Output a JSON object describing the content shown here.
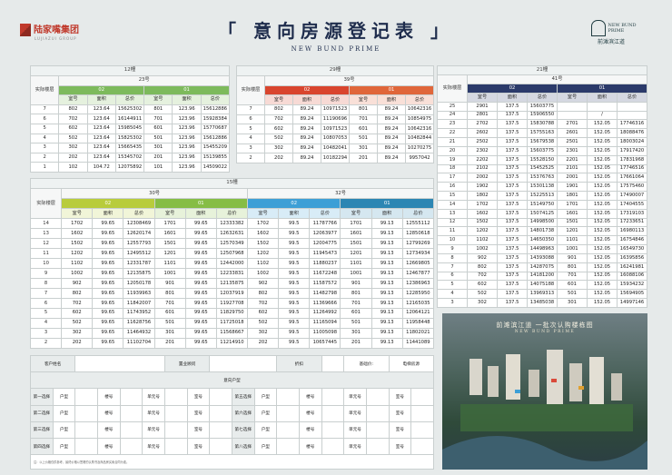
{
  "header": {
    "logo": "陆家嘴集团",
    "logo_sub": "LUJIAZUI GROUP",
    "title": "「 意向房源登记表 」",
    "subtitle": "NEW BUND PRIME",
    "brand_en": "NEW BUND PRIME",
    "brand_cn": "前滩滨江道"
  },
  "tables": [
    {
      "building": "12幢",
      "floor_label": "实际楼层",
      "columns": [
        "室号",
        "面积",
        "总价"
      ],
      "units": [
        {
          "name": "23号",
          "groups": [
            {
              "name": "02",
              "color": "#7dba5c"
            },
            {
              "name": "01",
              "color": "#7dba5c"
            }
          ]
        }
      ],
      "rows": [
        [
          7,
          802,
          123.64,
          15625302,
          801,
          123.96,
          15612886
        ],
        [
          6,
          702,
          123.64,
          16144911,
          701,
          123.96,
          15928384
        ],
        [
          5,
          602,
          123.64,
          15985045,
          601,
          123.96,
          15770687
        ],
        [
          4,
          502,
          123.64,
          15825302,
          501,
          123.96,
          15612886
        ],
        [
          3,
          302,
          123.64,
          15665435,
          301,
          123.96,
          15455209
        ],
        [
          2,
          202,
          123.64,
          15345702,
          201,
          123.96,
          15139855
        ],
        [
          1,
          102,
          104.72,
          12075892,
          101,
          123.96,
          14509022
        ]
      ]
    },
    {
      "building": "29幢",
      "floor_label": "实际楼层",
      "columns": [
        "室号",
        "面积",
        "总价"
      ],
      "units": [
        {
          "name": "39号",
          "groups": [
            {
              "name": "02",
              "color": "#d9452e"
            },
            {
              "name": "01",
              "color": "#e0663a"
            }
          ]
        }
      ],
      "rows": [
        [
          7,
          802,
          89.24,
          10971523,
          801,
          89.24,
          10642316
        ],
        [
          6,
          702,
          89.24,
          11190696,
          701,
          89.24,
          10854975
        ],
        [
          5,
          602,
          89.24,
          10971523,
          601,
          89.24,
          10642316
        ],
        [
          4,
          502,
          89.24,
          10807053,
          501,
          89.24,
          10482844
        ],
        [
          3,
          302,
          89.24,
          10482041,
          301,
          89.24,
          10270275
        ],
        [
          2,
          202,
          89.24,
          10182294,
          201,
          89.24,
          9957042
        ]
      ]
    },
    {
      "building": "21幢",
      "floor_label": "实际楼层",
      "columns": [
        "室号",
        "面积",
        "总价"
      ],
      "units": [
        {
          "name": "41号",
          "groups": [
            {
              "name": "02",
              "color": "#2b3a6a"
            },
            {
              "name": "01",
              "color": "#2b3a6a"
            }
          ]
        }
      ],
      "rows": [
        [
          25,
          2901,
          137.5,
          15603775,
          null,
          null,
          null
        ],
        [
          24,
          2801,
          137.5,
          15906550,
          null,
          "/",
          null
        ],
        [
          23,
          2702,
          137.5,
          15830788,
          2701,
          152.05,
          17746316
        ],
        [
          22,
          2602,
          137.5,
          15755163,
          2601,
          152.05,
          18088476
        ],
        [
          21,
          2502,
          137.5,
          15679538,
          2501,
          152.05,
          18003024
        ],
        [
          20,
          2302,
          137.5,
          15603775,
          2301,
          152.05,
          17917420
        ],
        [
          19,
          2202,
          137.5,
          15528150,
          2201,
          152.05,
          17831968
        ],
        [
          18,
          2102,
          137.5,
          15452525,
          2101,
          152.05,
          17746516
        ],
        [
          17,
          2002,
          137.5,
          15376763,
          2001,
          152.05,
          17661064
        ],
        [
          16,
          1902,
          137.5,
          15301138,
          1901,
          152.05,
          17575460
        ],
        [
          15,
          1802,
          137.5,
          15225513,
          1801,
          152.05,
          17490007
        ],
        [
          14,
          1702,
          137.5,
          15149750,
          1701,
          152.05,
          17404555
        ],
        [
          13,
          1602,
          137.5,
          15074125,
          1601,
          152.05,
          17319103
        ],
        [
          12,
          1502,
          137.5,
          14998500,
          1501,
          152.05,
          17233651
        ],
        [
          11,
          1202,
          137.5,
          14801738,
          1201,
          152.05,
          16980113
        ],
        [
          10,
          1102,
          137.5,
          14650350,
          1101,
          152.05,
          16754846
        ],
        [
          9,
          1002,
          137.5,
          14498963,
          1001,
          152.05,
          16549730
        ],
        [
          8,
          902,
          137.5,
          14393088,
          901,
          152.05,
          16395856
        ],
        [
          7,
          802,
          137.5,
          14287075,
          801,
          152.05,
          16241981
        ],
        [
          6,
          702,
          137.5,
          14181200,
          701,
          152.05,
          16088106
        ],
        [
          5,
          602,
          137.5,
          14075188,
          601,
          152.05,
          15934232
        ],
        [
          4,
          502,
          137.5,
          13969313,
          501,
          152.05,
          15694905
        ],
        [
          3,
          302,
          137.5,
          13485038,
          301,
          152.05,
          14997146
        ]
      ]
    },
    {
      "building": "15幢",
      "floor_label": "实际楼层",
      "columns": [
        "室号",
        "面积",
        "总价"
      ],
      "units": [
        {
          "name": "30号",
          "groups": [
            {
              "name": "02",
              "color": "#b8cc3c"
            },
            {
              "name": "01",
              "color": "#86bd45"
            }
          ]
        },
        {
          "name": "32号",
          "groups": [
            {
              "name": "02",
              "color": "#3d9fd6"
            },
            {
              "name": "01",
              "color": "#2c86b3"
            }
          ]
        }
      ],
      "rows": [
        [
          14,
          1702,
          99.65,
          12308469,
          1701,
          99.65,
          12333382,
          1702,
          99.5,
          11787766,
          1701,
          99.13,
          12555112
        ],
        [
          13,
          1602,
          99.65,
          12620174,
          1601,
          99.65,
          12632631,
          1602,
          99.5,
          12063977,
          1601,
          99.13,
          12850618
        ],
        [
          12,
          1502,
          99.65,
          12557793,
          1501,
          99.65,
          12570349,
          1502,
          99.5,
          12004775,
          1501,
          99.13,
          12799269
        ],
        [
          11,
          1202,
          99.65,
          12495512,
          1201,
          99.65,
          12507968,
          1202,
          99.5,
          11945473,
          1201,
          99.13,
          12734934
        ],
        [
          10,
          1102,
          99.65,
          12331787,
          1101,
          99.65,
          12442000,
          1102,
          99.5,
          11880237,
          1101,
          99.13,
          12669805
        ],
        [
          9,
          1002,
          99.65,
          12135875,
          1001,
          99.65,
          12233831,
          1002,
          99.5,
          11672248,
          1001,
          99.13,
          12467877
        ],
        [
          8,
          902,
          99.65,
          12050178,
          901,
          99.65,
          12135875,
          902,
          99.5,
          11587572,
          901,
          99.13,
          12386963
        ],
        [
          7,
          802,
          99.65,
          11939963,
          801,
          99.65,
          12037919,
          802,
          99.5,
          11482798,
          801,
          99.13,
          12285950
        ],
        [
          6,
          702,
          99.65,
          11842007,
          701,
          99.65,
          11927708,
          702,
          99.5,
          11369666,
          701,
          99.13,
          12165035
        ],
        [
          5,
          602,
          99.65,
          11743952,
          601,
          99.65,
          11829750,
          602,
          99.5,
          11264992,
          601,
          99.13,
          12064121
        ],
        [
          4,
          502,
          99.65,
          11628756,
          501,
          99.65,
          11725018,
          502,
          99.5,
          11165094,
          501,
          99.13,
          11958448
        ],
        [
          3,
          302,
          99.65,
          11464932,
          301,
          99.65,
          11568667,
          302,
          99.5,
          11005098,
          301,
          99.13,
          11802021
        ],
        [
          2,
          202,
          99.65,
          11102704,
          201,
          99.65,
          11214910,
          202,
          99.5,
          10657445,
          201,
          99.13,
          11441089
        ]
      ]
    }
  ],
  "form": {
    "customer": "客户姓名",
    "consultant": "置业顾问",
    "discount": "折扣",
    "base_price": "基础价:",
    "elevator": "电梯房源",
    "section": "意向户型",
    "fields": [
      "户型",
      "楼号",
      "单元号",
      "室号"
    ],
    "choices": [
      [
        "第一选择",
        "第五选择"
      ],
      [
        "第二选择",
        "第六选择"
      ],
      [
        "第三选择",
        "第七选择"
      ],
      [
        "第四选择",
        "第八选择"
      ]
    ],
    "note": "注：以上价格仅供参考，最终价格以签署的认购书及商品房买卖合同为准。"
  },
  "map": {
    "title": "前滩滨江道 一批次认购楼栋图",
    "subtitle": "NEW BUND PRIME"
  }
}
